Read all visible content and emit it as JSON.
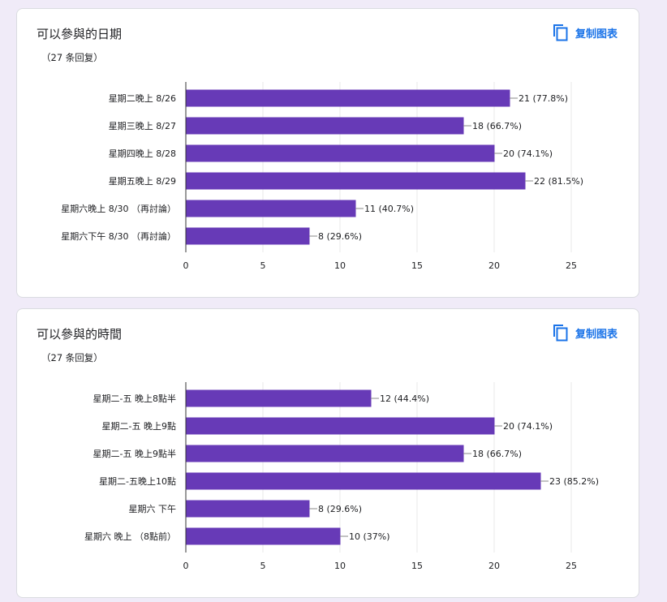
{
  "colors": {
    "bar": "#673ab7",
    "link": "#1a73e8",
    "background": "#f0ebf8"
  },
  "chart_data": [
    {
      "type": "bar",
      "orientation": "horizontal",
      "title": "可以參與的日期",
      "subtitle": "（27 条回复）",
      "copy_label": "复制图表",
      "copy_icon": "copy-icon",
      "categories": [
        "星期二晚上 8/26",
        "星期三晚上 8/27",
        "星期四晚上 8/28",
        "星期五晚上 8/29",
        "星期六晚上 8/30 （再討論）",
        "星期六下午 8/30 （再討論）"
      ],
      "values": [
        21,
        18,
        20,
        22,
        11,
        8
      ],
      "value_labels": [
        "21 (77.8%)",
        "18 (66.7%)",
        "20 (74.1%)",
        "22 (81.5%)",
        "11 (40.7%)",
        "8 (29.6%)"
      ],
      "xlim": [
        0,
        25
      ],
      "xticks": [
        0,
        5,
        10,
        15,
        20,
        25
      ],
      "grid": true
    },
    {
      "type": "bar",
      "orientation": "horizontal",
      "title": "可以參與的時間",
      "subtitle": "（27 条回复）",
      "copy_label": "复制图表",
      "copy_icon": "copy-icon",
      "categories": [
        "星期二-五 晚上8點半",
        "星期二-五 晚上9點",
        "星期二-五 晚上9點半",
        "星期二-五晚上10點",
        "星期六 下午",
        "星期六 晚上 （8點前）"
      ],
      "values": [
        12,
        20,
        18,
        23,
        8,
        10
      ],
      "value_labels": [
        "12 (44.4%)",
        "20 (74.1%)",
        "18 (66.7%)",
        "23 (85.2%)",
        "8 (29.6%)",
        "10 (37%)"
      ],
      "xlim": [
        0,
        25
      ],
      "xticks": [
        0,
        5,
        10,
        15,
        20,
        25
      ],
      "grid": true
    }
  ]
}
